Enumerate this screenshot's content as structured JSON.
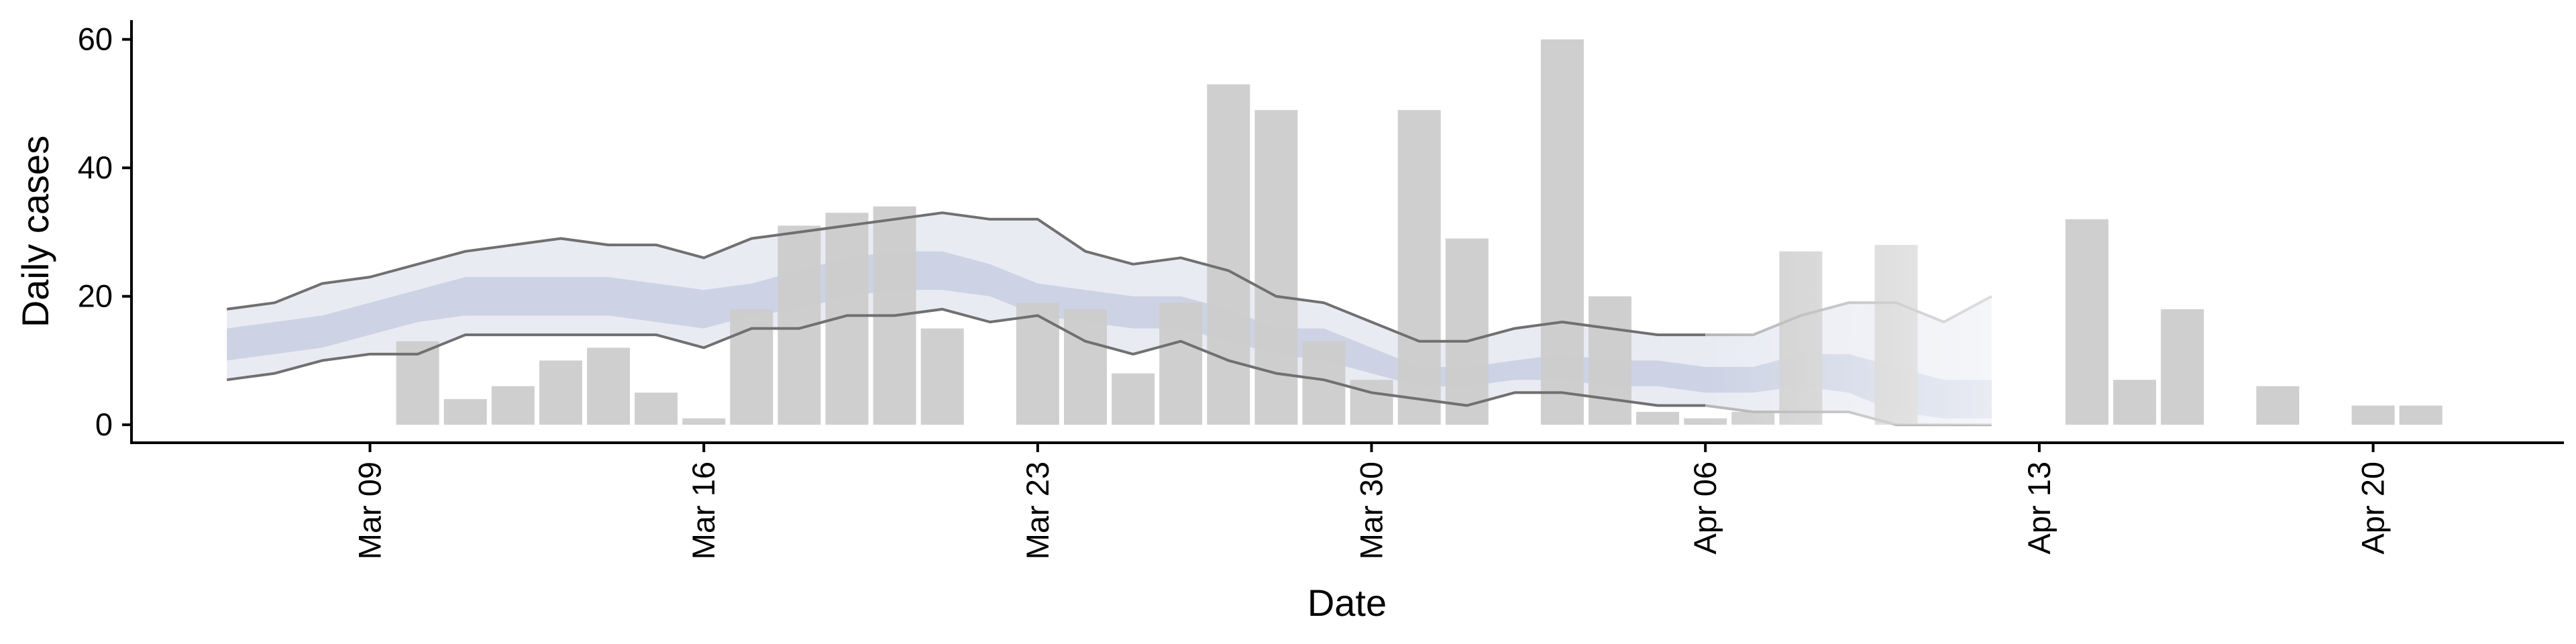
{
  "chart_data": {
    "type": "bar",
    "title": "",
    "xlabel": "Date",
    "ylabel": "Daily cases",
    "ylim": [
      -2.8,
      63
    ],
    "y_ticks": [
      0,
      20,
      40,
      60
    ],
    "y_tick_labels": [
      "0",
      "20",
      "40",
      "60"
    ],
    "x_domain": [
      "2020-03-04",
      "2020-04-24"
    ],
    "x_ticks": [
      "2020-03-09",
      "2020-03-16",
      "2020-03-23",
      "2020-03-30",
      "2020-04-06",
      "2020-04-13",
      "2020-04-20"
    ],
    "x_tick_labels": [
      "Mar 09",
      "Mar 16",
      "Mar 23",
      "Mar 30",
      "Apr 06",
      "Apr 13",
      "Apr 20"
    ],
    "grid": false,
    "legend": "none",
    "colors": {
      "bars": "#cccccc",
      "ribbon_outer": "#e9ebf3",
      "ribbon_inner": "#cdd3e4",
      "bound_lines": "#707070",
      "forecast_lines": "#b5b5b5",
      "axis": "#000000"
    },
    "bars": {
      "name": "Daily cases",
      "dates": [
        "2020-03-10",
        "2020-03-11",
        "2020-03-12",
        "2020-03-13",
        "2020-03-14",
        "2020-03-15",
        "2020-03-16",
        "2020-03-17",
        "2020-03-18",
        "2020-03-19",
        "2020-03-20",
        "2020-03-21",
        "2020-03-23",
        "2020-03-24",
        "2020-03-25",
        "2020-03-26",
        "2020-03-27",
        "2020-03-28",
        "2020-03-29",
        "2020-03-30",
        "2020-03-31",
        "2020-04-01",
        "2020-04-02",
        "2020-04-03",
        "2020-04-04",
        "2020-04-05",
        "2020-04-06",
        "2020-04-07",
        "2020-04-08",
        "2020-04-09",
        "2020-04-10",
        "2020-04-14",
        "2020-04-15",
        "2020-04-16",
        "2020-04-18",
        "2020-04-20",
        "2020-04-21"
      ],
      "values": [
        13,
        4,
        6,
        10,
        12,
        5,
        1,
        18,
        31,
        33,
        34,
        15,
        19,
        18,
        8,
        19,
        53,
        49,
        13,
        7,
        49,
        29,
        0,
        60,
        20,
        2,
        1,
        2,
        27,
        0,
        28,
        32,
        7,
        18,
        6,
        3,
        3
      ]
    },
    "estimate_ribbon": {
      "dates": [
        "2020-03-06",
        "2020-03-07",
        "2020-03-08",
        "2020-03-09",
        "2020-03-10",
        "2020-03-11",
        "2020-03-12",
        "2020-03-13",
        "2020-03-14",
        "2020-03-15",
        "2020-03-16",
        "2020-03-17",
        "2020-03-18",
        "2020-03-19",
        "2020-03-20",
        "2020-03-21",
        "2020-03-22",
        "2020-03-23",
        "2020-03-24",
        "2020-03-25",
        "2020-03-26",
        "2020-03-27",
        "2020-03-28",
        "2020-03-29",
        "2020-03-30",
        "2020-03-31",
        "2020-04-01",
        "2020-04-02",
        "2020-04-03",
        "2020-04-04",
        "2020-04-05",
        "2020-04-06",
        "2020-04-07",
        "2020-04-08",
        "2020-04-09",
        "2020-04-10",
        "2020-04-11",
        "2020-04-12"
      ],
      "upper_90": [
        18,
        19,
        22,
        23,
        25,
        27,
        28,
        29,
        28,
        28,
        26,
        29,
        30,
        31,
        32,
        33,
        32,
        32,
        27,
        25,
        26,
        24,
        20,
        19,
        16,
        13,
        13,
        15,
        16,
        15,
        14,
        14,
        14,
        17,
        19,
        19,
        16,
        20
      ],
      "upper_50": [
        15,
        16,
        17,
        19,
        21,
        23,
        23,
        23,
        23,
        22,
        21,
        22,
        24,
        26,
        27,
        27,
        25,
        22,
        21,
        20,
        20,
        18,
        15,
        15,
        12,
        9,
        9,
        10,
        11,
        10,
        10,
        9,
        9,
        11,
        11,
        9,
        7,
        7
      ],
      "lower_50": [
        10,
        11,
        12,
        14,
        16,
        17,
        17,
        17,
        17,
        16,
        15,
        17,
        18,
        20,
        21,
        21,
        20,
        17,
        16,
        15,
        15,
        13,
        11,
        10,
        8,
        6,
        6,
        7,
        7,
        6,
        6,
        5,
        5,
        6,
        5,
        2,
        1,
        1
      ],
      "lower_90": [
        7,
        8,
        10,
        11,
        11,
        14,
        14,
        14,
        14,
        14,
        12,
        15,
        15,
        17,
        17,
        18,
        16,
        17,
        13,
        11,
        13,
        10,
        8,
        7,
        5,
        4,
        3,
        5,
        5,
        4,
        3,
        3,
        2,
        2,
        2,
        0,
        0,
        0
      ],
      "forecast_from": "2020-04-06"
    }
  }
}
